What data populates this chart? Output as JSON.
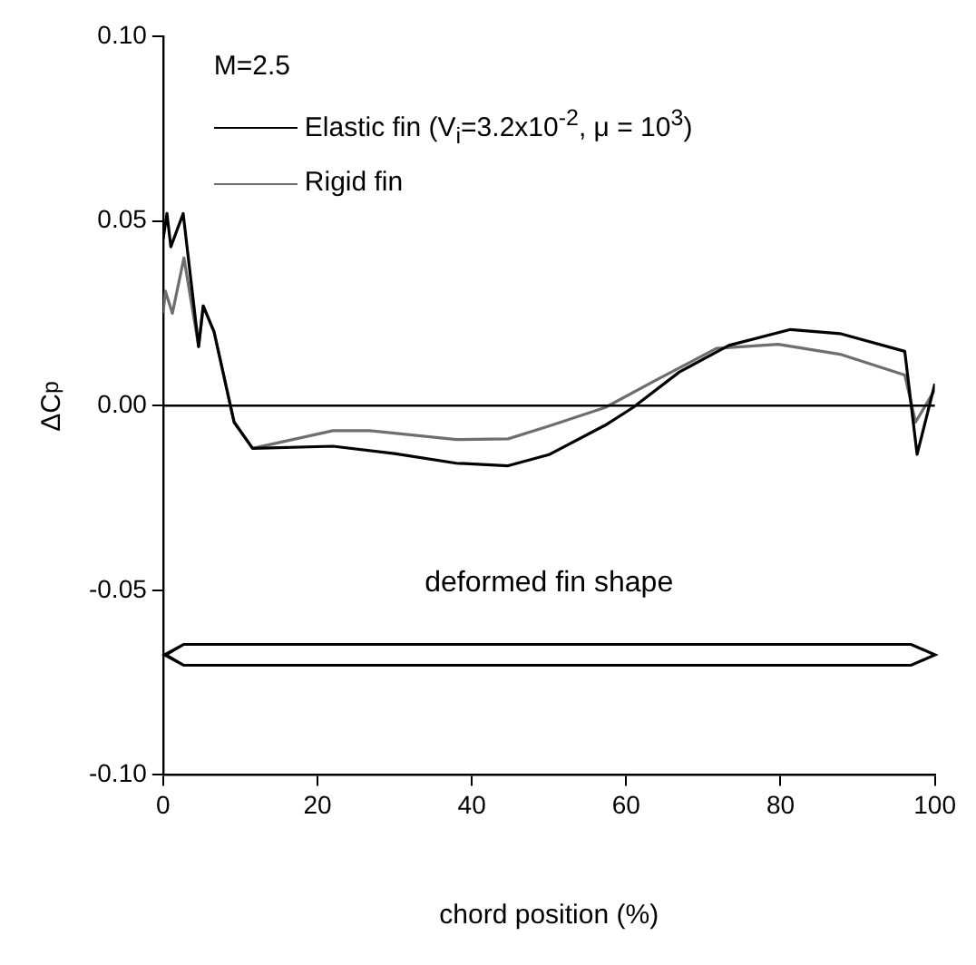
{
  "chart_data": {
    "type": "line",
    "xlabel": "chord position (%)",
    "ylabel": "ΔC$_{p}$",
    "annotations": [
      "M=2.5",
      "deformed fin shape"
    ],
    "xlim": [
      0,
      100
    ],
    "xticks": [
      0,
      20,
      40,
      60,
      80,
      100
    ],
    "ylim": [
      -0.1,
      0.1
    ],
    "yticks": [
      {
        "value": -0.1,
        "label": "-0.10"
      },
      {
        "value": -0.05,
        "label": "-0.05"
      },
      {
        "value": 0,
        "label": "0.00"
      },
      {
        "value": 0.05,
        "label": "0.05"
      },
      {
        "value": 0.1,
        "label": "0.10"
      }
    ],
    "grid": false,
    "legend": "top left",
    "marker": "none",
    "line_style": "solid",
    "ref_lines": [
      {
        "axis": "y",
        "value": 0,
        "color": "#000000"
      }
    ],
    "series": [
      {
        "name": "Elastic fin (V$_{i}$=3.2x10$^{-2}$, μ = 10$^{3}$)",
        "color": "#000000",
        "x": [
          0,
          0.5,
          1,
          2.6,
          4.6,
          5.2,
          6.6,
          9.2,
          11.6,
          22,
          30,
          38,
          44.7,
          50.1,
          57.3,
          60.9,
          66.9,
          73.3,
          81.3,
          87.7,
          96.1,
          97.7,
          100
        ],
        "values": [
          0.045,
          0.052,
          0.043,
          0.052,
          0.016,
          0.027,
          0.02,
          -0.0045,
          -0.0116,
          -0.011,
          -0.013,
          -0.0156,
          -0.0163,
          -0.0132,
          -0.0053,
          -0.0005,
          0.0091,
          0.0163,
          0.0206,
          0.0195,
          0.0147,
          -0.0132,
          0.0059
        ]
      },
      {
        "name": "Rigid fin",
        "color": "#6e6e6e",
        "x": [
          0,
          0.3,
          1.2,
          2.7,
          4.6,
          5.2,
          6.6,
          9.2,
          11.6,
          22,
          26.8,
          38,
          44.7,
          50.1,
          57.3,
          63.7,
          71.7,
          79.7,
          87.7,
          96.1,
          97.5,
          100
        ],
        "values": [
          0.025,
          0.031,
          0.025,
          0.04,
          0.016,
          0.027,
          0.02,
          -0.0045,
          -0.0116,
          -0.0068,
          -0.0068,
          -0.0092,
          -0.009,
          -0.0055,
          -0.0005,
          0.0067,
          0.0155,
          0.0166,
          0.0139,
          0.0083,
          -0.0045,
          0.0043
        ]
      }
    ]
  }
}
